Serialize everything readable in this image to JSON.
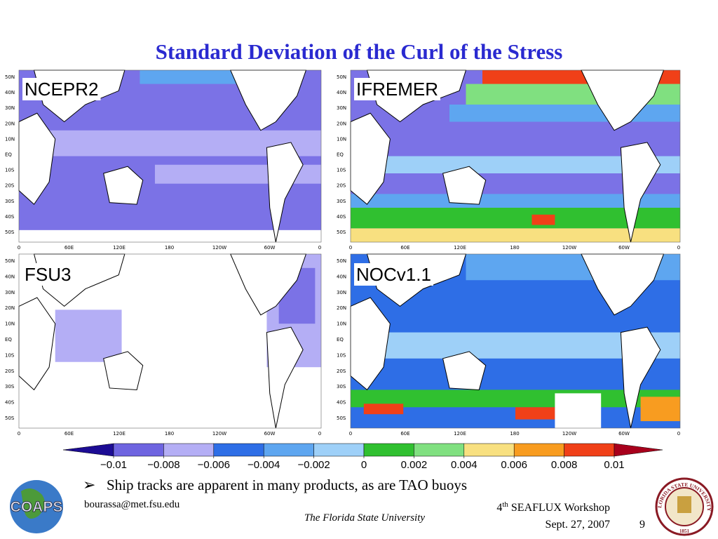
{
  "title": "Standard Deviation of the Curl of the Stress",
  "panels": [
    {
      "name": "NCEPR2"
    },
    {
      "name": "IFREMER"
    },
    {
      "name": "FSU3"
    },
    {
      "name": "NOCv1.1"
    }
  ],
  "lat_labels": [
    "50N",
    "40N",
    "30N",
    "20N",
    "10N",
    "EQ",
    "10S",
    "20S",
    "30S",
    "40S",
    "50S"
  ],
  "lon_labels": [
    "0",
    "60E",
    "120E",
    "180",
    "120W",
    "60W",
    "0"
  ],
  "colorbar": {
    "ticks": [
      {
        "value": -0.01,
        "label": "−0.01"
      },
      {
        "value": -0.008,
        "label": "−0.008"
      },
      {
        "value": -0.006,
        "label": "−0.006"
      },
      {
        "value": -0.004,
        "label": "−0.004"
      },
      {
        "value": -0.002,
        "label": "−0.002"
      },
      0,
      0.002,
      0.004,
      0.006,
      0.008,
      0.01
    ],
    "colors": [
      "#6e64e0",
      "#b4aef5",
      "#2e6ee6",
      "#5ea6f0",
      "#9ed0f8",
      "#30c030",
      "#80e080",
      "#f8e080",
      "#f89c20",
      "#f04018"
    ],
    "under_color": "#1c0c94",
    "over_color": "#a8001c"
  },
  "bullet": "Ship tracks are apparent in many products, as are TAO buoys",
  "email": "bourassa@met.fsu.edu",
  "university": "The Florida State University",
  "workshop": {
    "number": "4",
    "suffix": "th",
    "name": "SEAFLUX Workshop"
  },
  "date": "Sept. 27, 2007",
  "page": "9",
  "logo": "COAPS",
  "seal": {
    "text": "FLORIDA STATE UNIVERSITY",
    "year": "1851"
  }
}
